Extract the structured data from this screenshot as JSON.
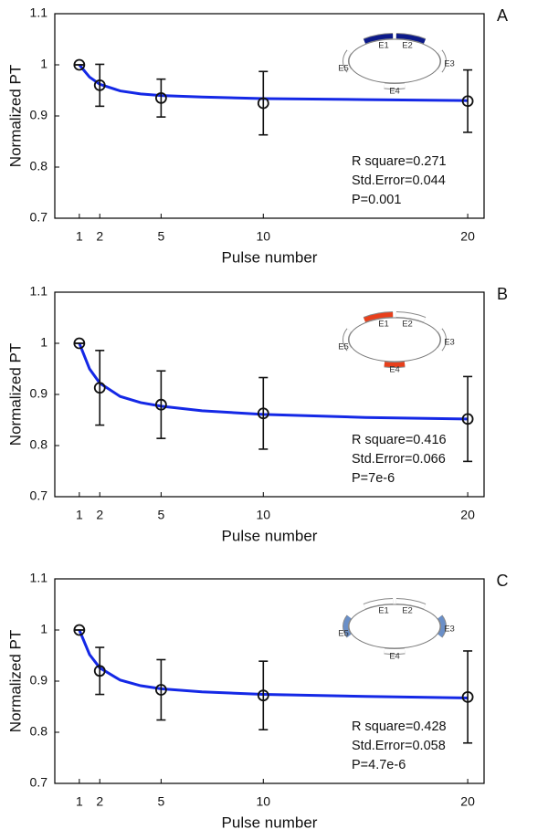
{
  "chart_data": [
    {
      "type": "errorbar",
      "panel_label": "A",
      "xlabel": "Pulse number",
      "ylabel": "Normalized PT",
      "x": [
        1,
        2,
        5,
        10,
        20
      ],
      "values": [
        1.0,
        0.96,
        0.935,
        0.925,
        0.929
      ],
      "errors": [
        0,
        0.041,
        0.037,
        0.062,
        0.061
      ],
      "marker_color": "#111111",
      "fit": {
        "x": [
          1,
          1.5,
          2,
          3,
          4,
          5,
          7,
          10,
          15,
          20
        ],
        "values": [
          1.0,
          0.976,
          0.962,
          0.949,
          0.943,
          0.94,
          0.937,
          0.934,
          0.932,
          0.93
        ],
        "color": "#1428e6"
      },
      "xlim": [
        -0.2,
        20.8
      ],
      "ylim": [
        0.7,
        1.1
      ],
      "xticks": [
        1,
        2,
        5,
        10,
        20
      ],
      "yticks": [
        0.7,
        0.8,
        0.9,
        1,
        1.1
      ],
      "annotations": [
        "R square=0.271",
        "Std.Error=0.044",
        "P=0.001"
      ],
      "inset": {
        "active_color": "#0c1a8a",
        "electrodes": [
          {
            "label": "E1",
            "active": true
          },
          {
            "label": "E2",
            "active": true
          },
          {
            "label": "E3",
            "active": false
          },
          {
            "label": "E4",
            "active": false
          },
          {
            "label": "E5",
            "active": false
          }
        ]
      }
    },
    {
      "type": "errorbar",
      "panel_label": "B",
      "xlabel": "Pulse number",
      "ylabel": "Normalized PT",
      "x": [
        1,
        2,
        5,
        10,
        20
      ],
      "values": [
        1.0,
        0.913,
        0.88,
        0.863,
        0.852
      ],
      "errors": [
        0,
        0.073,
        0.066,
        0.07,
        0.083
      ],
      "marker_color": "#111111",
      "fit": {
        "x": [
          1,
          1.5,
          2,
          3,
          4,
          5,
          7,
          10,
          15,
          20
        ],
        "values": [
          1.0,
          0.95,
          0.922,
          0.896,
          0.884,
          0.877,
          0.868,
          0.861,
          0.855,
          0.852
        ],
        "color": "#1428e6"
      },
      "xlim": [
        -0.2,
        20.8
      ],
      "ylim": [
        0.7,
        1.1
      ],
      "xticks": [
        1,
        2,
        5,
        10,
        20
      ],
      "yticks": [
        0.7,
        0.8,
        0.9,
        1,
        1.1
      ],
      "annotations": [
        "R square=0.416",
        "Std.Error=0.066",
        "P=7e-6"
      ],
      "inset": {
        "active_color": "#e8401c",
        "electrodes": [
          {
            "label": "E1",
            "active": true
          },
          {
            "label": "E2",
            "active": false
          },
          {
            "label": "E3",
            "active": false
          },
          {
            "label": "E4",
            "active": true
          },
          {
            "label": "E5",
            "active": false
          }
        ]
      }
    },
    {
      "type": "errorbar",
      "panel_label": "C",
      "xlabel": "Pulse number",
      "ylabel": "Normalized PT",
      "x": [
        1,
        2,
        5,
        10,
        20
      ],
      "values": [
        1.0,
        0.92,
        0.883,
        0.872,
        0.869
      ],
      "errors": [
        0,
        0.046,
        0.059,
        0.067,
        0.09
      ],
      "marker_color": "#111111",
      "fit": {
        "x": [
          1,
          1.5,
          2,
          3,
          4,
          5,
          7,
          10,
          15,
          20
        ],
        "values": [
          1.0,
          0.952,
          0.926,
          0.902,
          0.891,
          0.885,
          0.879,
          0.874,
          0.87,
          0.867
        ],
        "color": "#1428e6"
      },
      "xlim": [
        -0.2,
        20.8
      ],
      "ylim": [
        0.7,
        1.1
      ],
      "xticks": [
        1,
        2,
        5,
        10,
        20
      ],
      "yticks": [
        0.7,
        0.8,
        0.9,
        1,
        1.1
      ],
      "annotations": [
        "R square=0.428",
        "Std.Error=0.058",
        "P=4.7e-6"
      ],
      "inset": {
        "active_color": "#6a8fc8",
        "electrodes": [
          {
            "label": "E1",
            "active": false
          },
          {
            "label": "E2",
            "active": false
          },
          {
            "label": "E3",
            "active": true
          },
          {
            "label": "E4",
            "active": false
          },
          {
            "label": "E5",
            "active": true
          }
        ]
      }
    }
  ]
}
